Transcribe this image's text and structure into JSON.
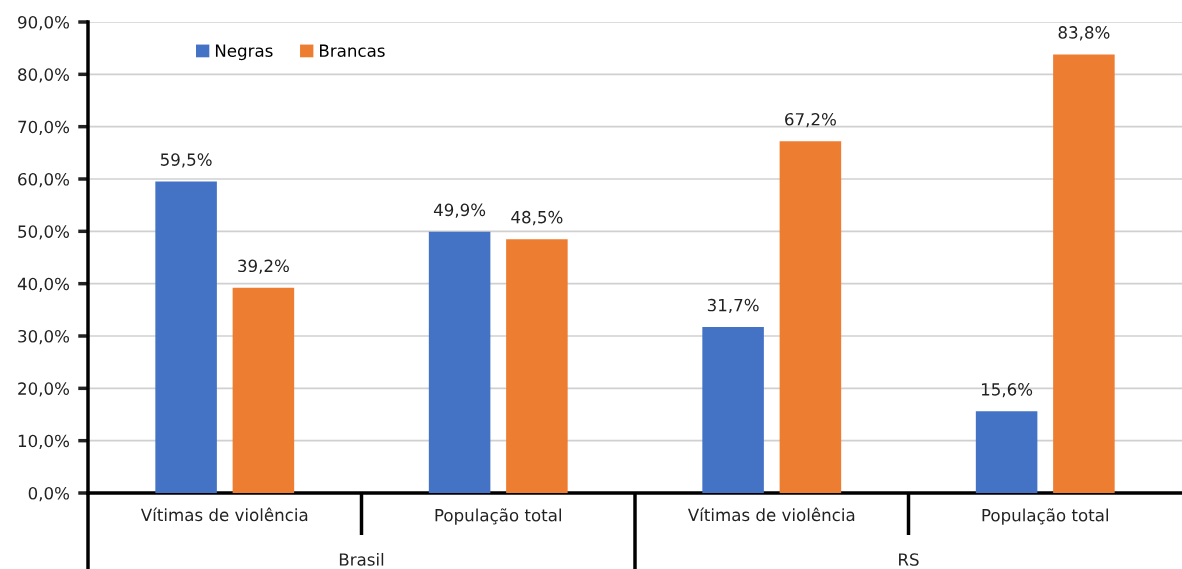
{
  "chart_data": {
    "type": "bar",
    "categories": [
      "Vítimas de violência",
      "População total",
      "Vítimas de violência",
      "População total"
    ],
    "series": [
      {
        "name": "Negras",
        "color": "#4472c4",
        "values": [
          59.5,
          49.9,
          31.7,
          15.6
        ],
        "value_labels": [
          "59,5%",
          "49,9%",
          "31,7%",
          "15,6%"
        ]
      },
      {
        "name": "Brancas",
        "color": "#ed7d31",
        "values": [
          39.2,
          48.5,
          67.2,
          83.8
        ],
        "value_labels": [
          "39,2%",
          "48,5%",
          "67,2%",
          "83,8%"
        ]
      }
    ],
    "ylim": [
      0,
      90
    ],
    "yticks": [
      {
        "value": 0,
        "label": "0,0%"
      },
      {
        "value": 10,
        "label": "10,0%"
      },
      {
        "value": 20,
        "label": "20,0%"
      },
      {
        "value": 30,
        "label": "30,0%"
      },
      {
        "value": 40,
        "label": "40,0%"
      },
      {
        "value": 50,
        "label": "50,0%"
      },
      {
        "value": 60,
        "label": "60,0%"
      },
      {
        "value": 70,
        "label": "70,0%"
      },
      {
        "value": 80,
        "label": "80,0%"
      },
      {
        "value": 90,
        "label": "90,0%"
      }
    ],
    "grid": "y",
    "legend": "top left",
    "annotations": [
      "Brasil",
      "RS"
    ]
  }
}
